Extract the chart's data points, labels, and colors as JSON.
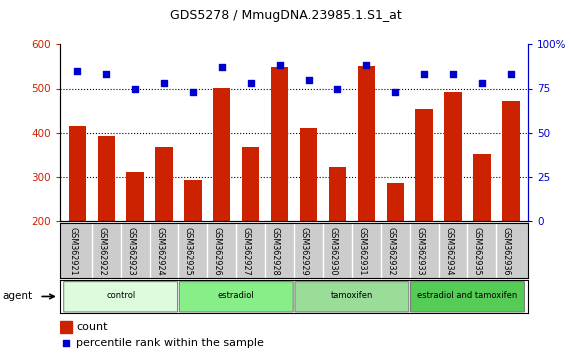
{
  "title": "GDS5278 / MmugDNA.23985.1.S1_at",
  "samples": [
    "GSM362921",
    "GSM362922",
    "GSM362923",
    "GSM362924",
    "GSM362925",
    "GSM362926",
    "GSM362927",
    "GSM362928",
    "GSM362929",
    "GSM362930",
    "GSM362931",
    "GSM362932",
    "GSM362933",
    "GSM362934",
    "GSM362935",
    "GSM362936"
  ],
  "counts": [
    415,
    393,
    311,
    368,
    293,
    502,
    368,
    549,
    410,
    322,
    551,
    287,
    454,
    491,
    351,
    472
  ],
  "percentile_ranks": [
    85,
    83,
    75,
    78,
    73,
    87,
    78,
    88,
    80,
    75,
    88,
    73,
    83,
    83,
    78,
    83
  ],
  "groups": [
    {
      "label": "control",
      "start": 0,
      "end": 4,
      "color": "#ddfcdd"
    },
    {
      "label": "estradiol",
      "start": 4,
      "end": 8,
      "color": "#88ee88"
    },
    {
      "label": "tamoxifen",
      "start": 8,
      "end": 12,
      "color": "#99dd99"
    },
    {
      "label": "estradiol and tamoxifen",
      "start": 12,
      "end": 16,
      "color": "#55cc55"
    }
  ],
  "ylim_left": [
    200,
    600
  ],
  "ylim_right": [
    0,
    100
  ],
  "yticks_left": [
    200,
    300,
    400,
    500,
    600
  ],
  "yticks_right": [
    0,
    25,
    50,
    75,
    100
  ],
  "ytick_labels_right": [
    "0",
    "25",
    "50",
    "75",
    "100%"
  ],
  "bar_color": "#cc2200",
  "dot_color": "#0000cc",
  "bg_color": "#ffffff",
  "sample_box_color": "#cccccc",
  "agent_label": "agent",
  "legend_count": "count",
  "legend_percentile": "percentile rank within the sample"
}
